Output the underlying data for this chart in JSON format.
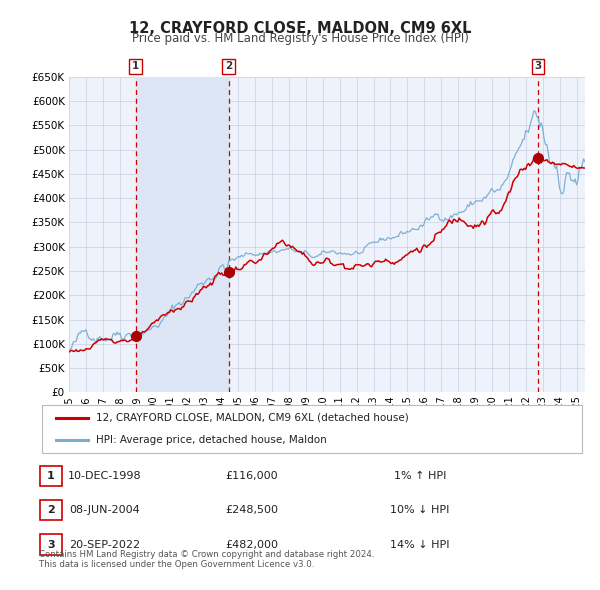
{
  "title": "12, CRAYFORD CLOSE, MALDON, CM9 6XL",
  "subtitle": "Price paid vs. HM Land Registry's House Price Index (HPI)",
  "legend_label_red": "12, CRAYFORD CLOSE, MALDON, CM9 6XL (detached house)",
  "legend_label_blue": "HPI: Average price, detached house, Maldon",
  "footer_line1": "Contains HM Land Registry data © Crown copyright and database right 2024.",
  "footer_line2": "This data is licensed under the Open Government Licence v3.0.",
  "transactions": [
    {
      "num": 1,
      "date": "10-DEC-1998",
      "date_x": 1998.94,
      "price": 116000,
      "hpi_diff": "1% ↑ HPI"
    },
    {
      "num": 2,
      "date": "08-JUN-2004",
      "date_x": 2004.44,
      "price": 248500,
      "hpi_diff": "10% ↓ HPI"
    },
    {
      "num": 3,
      "date": "20-SEP-2022",
      "date_x": 2022.72,
      "price": 482000,
      "hpi_diff": "14% ↓ HPI"
    }
  ],
  "xmin": 1995.0,
  "xmax": 2025.5,
  "ymin": 0,
  "ymax": 650000,
  "yticks": [
    0,
    50000,
    100000,
    150000,
    200000,
    250000,
    300000,
    350000,
    400000,
    450000,
    500000,
    550000,
    600000,
    650000
  ],
  "background_color": "#ffffff",
  "plot_bg_color": "#eef2fb",
  "grid_color": "#c8cfe0",
  "red_color": "#cc0000",
  "blue_color": "#7aadd4",
  "shade_color": "#dce6f5",
  "vline_color": "#cc0000",
  "marker_color": "#aa0000",
  "t1_yr": 1998.94,
  "t1_price": 116000,
  "t2_yr": 2004.44,
  "t2_price": 248500,
  "t3_yr": 2022.72,
  "t3_price": 482000
}
